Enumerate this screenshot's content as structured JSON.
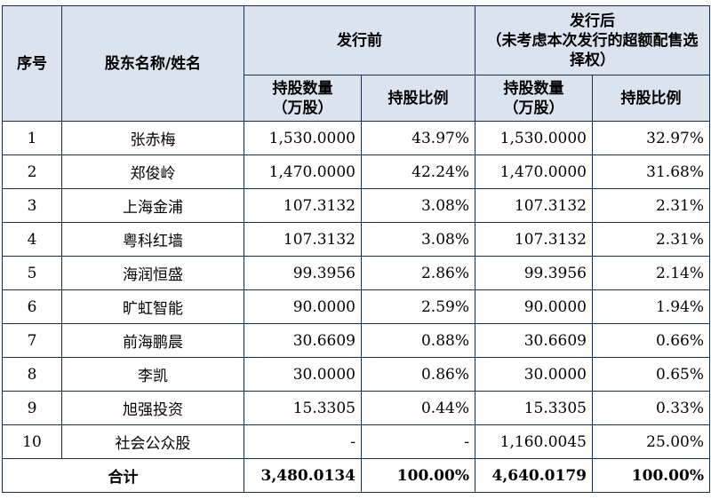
{
  "header": {
    "seq": "序号",
    "name": "股东名称/姓名",
    "before": "发行前",
    "after_line1": "发行后",
    "after_line2": "（未考虑本次发行的超额配售选择权）",
    "shares_line1": "持股数量",
    "shares_line2": "（万股）",
    "ratio": "持股比例"
  },
  "rows": [
    {
      "seq": "1",
      "name": "张赤梅",
      "before_shares": "1,530.0000",
      "before_ratio": "43.97%",
      "after_shares": "1,530.0000",
      "after_ratio": "32.97%"
    },
    {
      "seq": "2",
      "name": "郑俊岭",
      "before_shares": "1,470.0000",
      "before_ratio": "42.24%",
      "after_shares": "1,470.0000",
      "after_ratio": "31.68%"
    },
    {
      "seq": "3",
      "name": "上海金浦",
      "before_shares": "107.3132",
      "before_ratio": "3.08%",
      "after_shares": "107.3132",
      "after_ratio": "2.31%"
    },
    {
      "seq": "4",
      "name": "粤科红墙",
      "before_shares": "107.3132",
      "before_ratio": "3.08%",
      "after_shares": "107.3132",
      "after_ratio": "2.31%"
    },
    {
      "seq": "5",
      "name": "海润恒盛",
      "before_shares": "99.3956",
      "before_ratio": "2.86%",
      "after_shares": "99.3956",
      "after_ratio": "2.14%"
    },
    {
      "seq": "6",
      "name": "旷虹智能",
      "before_shares": "90.0000",
      "before_ratio": "2.59%",
      "after_shares": "90.0000",
      "after_ratio": "1.94%"
    },
    {
      "seq": "7",
      "name": "前海鹏晨",
      "before_shares": "30.6609",
      "before_ratio": "0.88%",
      "after_shares": "30.6609",
      "after_ratio": "0.66%"
    },
    {
      "seq": "8",
      "name": "李凯",
      "before_shares": "30.0000",
      "before_ratio": "0.86%",
      "after_shares": "30.0000",
      "after_ratio": "0.65%"
    },
    {
      "seq": "9",
      "name": "旭强投资",
      "before_shares": "15.3305",
      "before_ratio": "0.44%",
      "after_shares": "15.3305",
      "after_ratio": "0.33%"
    },
    {
      "seq": "10",
      "name": "社会公众股",
      "before_shares": "-",
      "before_ratio": "-",
      "after_shares": "1,160.0045",
      "after_ratio": "25.00%"
    }
  ],
  "total": {
    "label": "合计",
    "before_shares": "3,480.0134",
    "before_ratio": "100.00%",
    "after_shares": "4,640.0179",
    "after_ratio": "100.00%"
  }
}
